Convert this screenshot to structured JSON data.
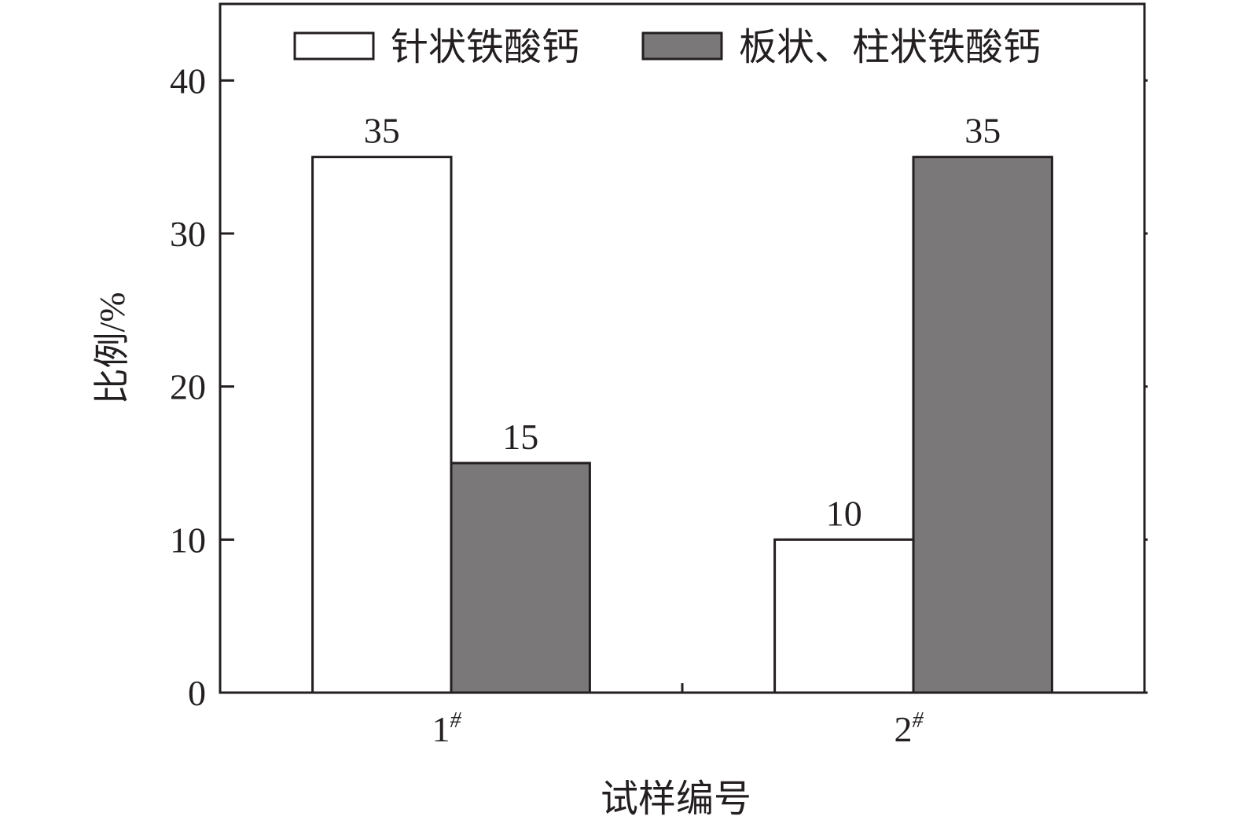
{
  "chart_data": {
    "type": "bar",
    "categories": [
      "1",
      "2"
    ],
    "category_superscript": "#",
    "series": [
      {
        "name": "针状铁酸钙",
        "values": [
          35,
          10
        ],
        "color": "#ffffff"
      },
      {
        "name": "板状、柱状铁酸钙",
        "values": [
          15,
          35
        ],
        "color": "#7a7879"
      }
    ],
    "data_labels": [
      [
        "35",
        "10"
      ],
      [
        "15",
        "35"
      ]
    ],
    "xlabel": "试样编号",
    "ylabel": "比例/%",
    "ylim": [
      0,
      45
    ],
    "yticks": [
      0,
      10,
      20,
      30,
      40
    ],
    "grid": false,
    "legend": "top"
  }
}
